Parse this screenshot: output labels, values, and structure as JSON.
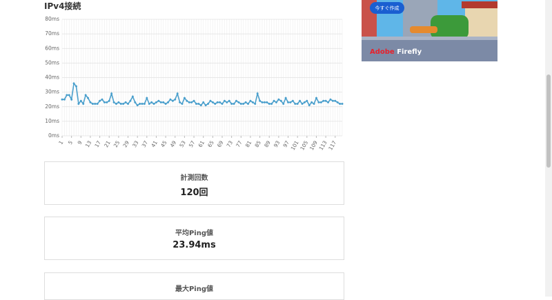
{
  "section_title": "IPv4接続",
  "chart_data": {
    "type": "line",
    "x": [
      1,
      2,
      3,
      4,
      5,
      6,
      7,
      8,
      9,
      10,
      11,
      12,
      13,
      14,
      15,
      16,
      17,
      18,
      19,
      20,
      21,
      22,
      23,
      24,
      25,
      26,
      27,
      28,
      29,
      30,
      31,
      32,
      33,
      34,
      35,
      36,
      37,
      38,
      39,
      40,
      41,
      42,
      43,
      44,
      45,
      46,
      47,
      48,
      49,
      50,
      51,
      52,
      53,
      54,
      55,
      56,
      57,
      58,
      59,
      60,
      61,
      62,
      63,
      64,
      65,
      66,
      67,
      68,
      69,
      70,
      71,
      72,
      73,
      74,
      75,
      76,
      77,
      78,
      79,
      80,
      81,
      82,
      83,
      84,
      85,
      86,
      87,
      88,
      89,
      90,
      91,
      92,
      93,
      94,
      95,
      96,
      97,
      98,
      99,
      100,
      101,
      102,
      103,
      104,
      105,
      106,
      107,
      108,
      109,
      110,
      111,
      112,
      113,
      114,
      115,
      116,
      117,
      118,
      119,
      120
    ],
    "values": [
      25,
      25,
      28,
      28,
      25,
      36,
      34,
      22,
      24,
      22,
      28,
      26,
      23,
      22,
      22,
      22,
      24,
      25,
      23,
      23,
      24,
      29,
      23,
      22,
      23,
      22,
      22,
      23,
      22,
      24,
      27,
      23,
      21,
      22,
      22,
      22,
      26,
      22,
      23,
      22,
      23,
      24,
      23,
      23,
      22,
      23,
      25,
      24,
      25,
      29,
      23,
      22,
      26,
      24,
      23,
      23,
      24,
      22,
      22,
      21,
      23,
      21,
      22,
      24,
      23,
      22,
      23,
      23,
      22,
      24,
      23,
      24,
      22,
      22,
      24,
      23,
      22,
      22,
      23,
      22,
      24,
      23,
      22,
      29,
      24,
      23,
      23,
      23,
      22,
      22,
      24,
      23,
      25,
      24,
      22,
      26,
      23,
      23,
      24,
      22,
      22,
      24,
      22,
      23,
      24,
      21,
      23,
      22,
      26,
      23,
      23,
      24,
      24,
      23,
      25,
      24,
      24,
      23,
      22,
      22
    ],
    "color": "#4a9fcc",
    "xlim": [
      1,
      120
    ],
    "xticks": [
      1,
      5,
      9,
      13,
      17,
      21,
      25,
      29,
      33,
      37,
      41,
      45,
      49,
      53,
      57,
      61,
      65,
      69,
      73,
      77,
      81,
      85,
      89,
      93,
      97,
      101,
      105,
      109,
      113,
      117
    ],
    "ylim": [
      0,
      80
    ],
    "yticks": [
      {
        "value": 0,
        "label": "0ms"
      },
      {
        "value": 10,
        "label": "10ms"
      },
      {
        "value": 20,
        "label": "20ms"
      },
      {
        "value": 30,
        "label": "30ms"
      },
      {
        "value": 40,
        "label": "40ms"
      },
      {
        "value": 50,
        "label": "50ms"
      },
      {
        "value": 60,
        "label": "60ms"
      },
      {
        "value": 70,
        "label": "70ms"
      },
      {
        "value": 80,
        "label": "80ms"
      }
    ],
    "grid": true
  },
  "stats": [
    {
      "label": "計測回数",
      "value": "120回"
    },
    {
      "label": "平均Ping値",
      "value": "23.94ms"
    },
    {
      "label": "最大Ping値"
    }
  ],
  "ad": {
    "button": "今すぐ作成",
    "brand": "Adobe",
    "product": "Firefly"
  }
}
